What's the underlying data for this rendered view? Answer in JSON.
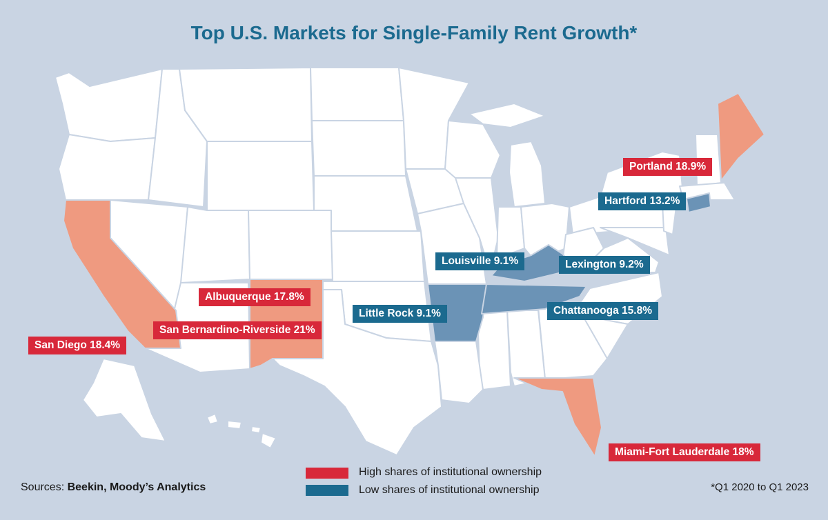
{
  "title": "Top U.S. Markets for Single-Family Rent Growth*",
  "colors": {
    "background": "#c9d4e3",
    "land": "#ffffff",
    "border": "#c9d4e3",
    "high_fill": "#ef9a80",
    "low_fill": "#6b93b6",
    "high_label": "#d8283a",
    "low_label": "#1b6a8f",
    "title": "#1b6a8f"
  },
  "highlighted_states": {
    "high": [
      "California",
      "New Mexico",
      "Florida",
      "Maine"
    ],
    "low": [
      "Arkansas",
      "Kentucky",
      "Tennessee",
      "Connecticut"
    ]
  },
  "markets": [
    {
      "text": "Portland 18.9%",
      "group": "high"
    },
    {
      "text": "Hartford 13.2%",
      "group": "low"
    },
    {
      "text": "Louisville 9.1%",
      "group": "low"
    },
    {
      "text": "Lexington 9.2%",
      "group": "low"
    },
    {
      "text": "Little Rock 9.1%",
      "group": "low"
    },
    {
      "text": "Chattanooga 15.8%",
      "group": "low"
    },
    {
      "text": "Albuquerque 17.8%",
      "group": "high"
    },
    {
      "text": "San Bernardino-Riverside 21%",
      "group": "high"
    },
    {
      "text": "San Diego 18.4%",
      "group": "high"
    },
    {
      "text": "Miami-Fort Lauderdale 18%",
      "group": "high"
    }
  ],
  "legend": [
    {
      "label": "High shares of institutional ownership",
      "color": "#d8283a"
    },
    {
      "label": "Low shares of institutional ownership",
      "color": "#1b6a8f"
    }
  ],
  "sources": {
    "prefix": "Sources: ",
    "names": "Beekin, Moody’s Analytics"
  },
  "footnote": "*Q1 2020 to Q1 2023"
}
